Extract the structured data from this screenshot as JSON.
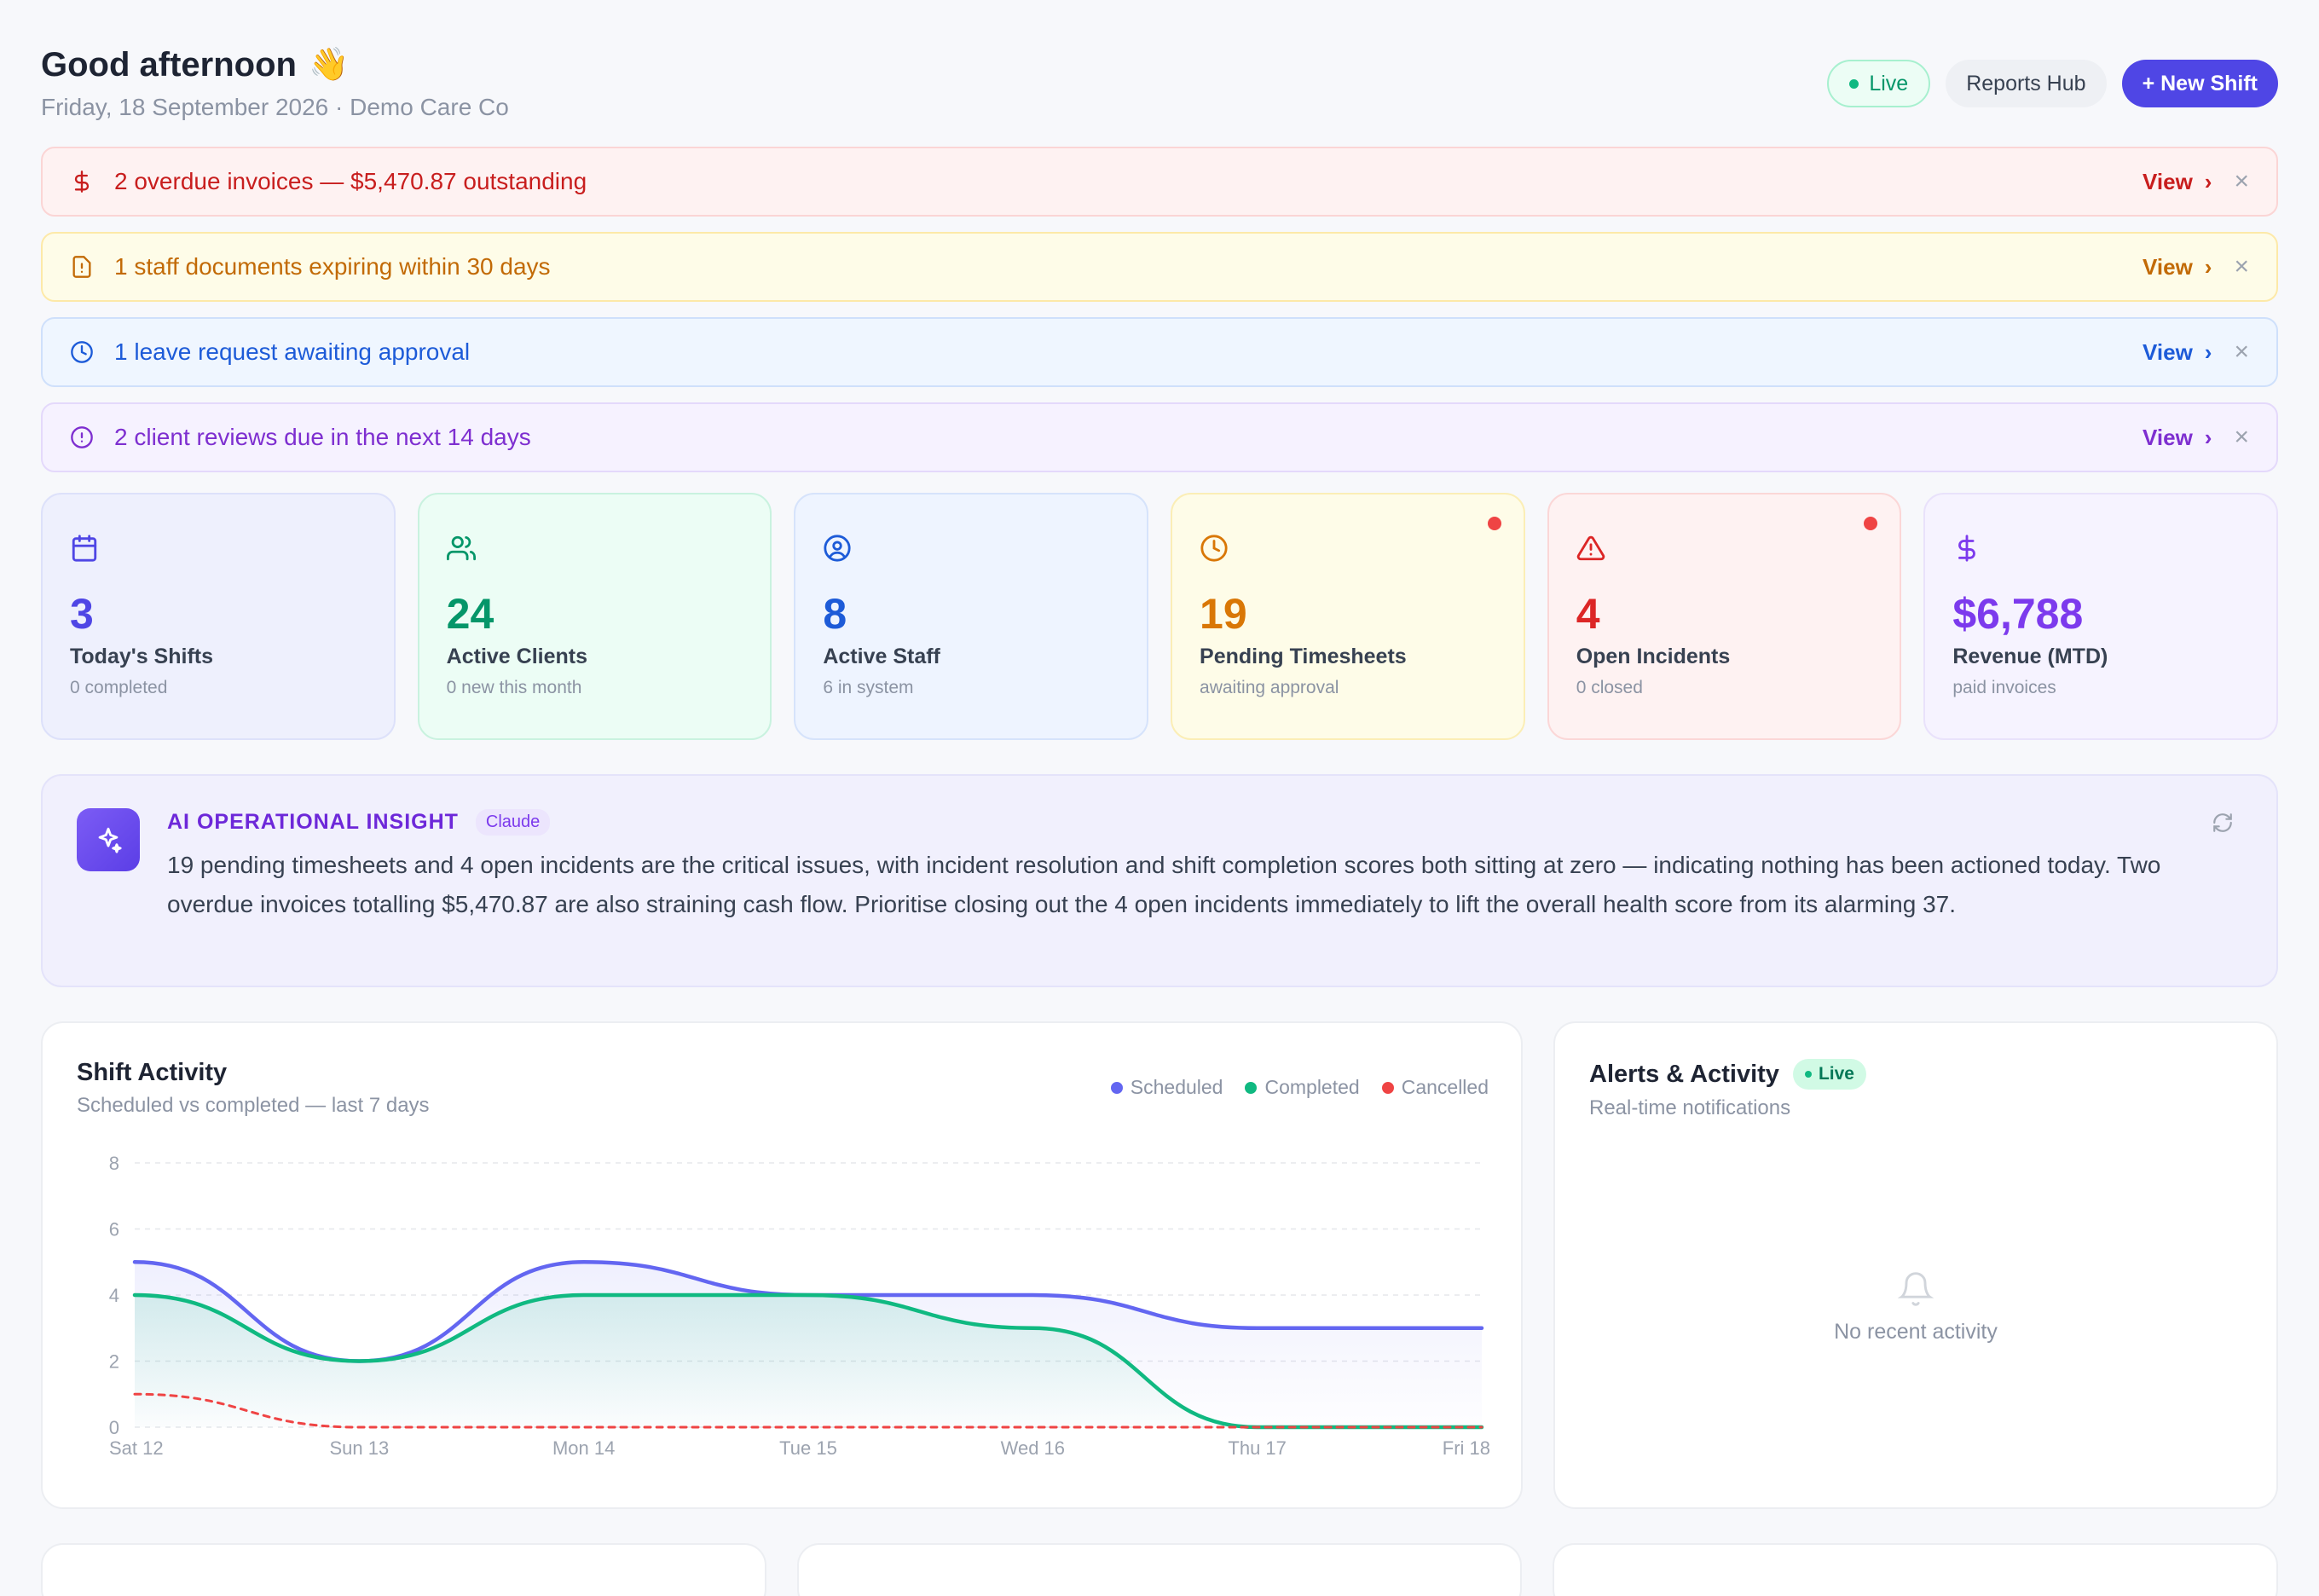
{
  "header": {
    "greeting": "Good afternoon",
    "wave_emoji": "👋",
    "subline": "Friday, 18 September 2026 · Demo Care Co",
    "live_label": "Live",
    "reports_label": "Reports Hub",
    "new_shift_label": "+ New Shift"
  },
  "alerts": [
    {
      "text": "2 overdue invoices — $5,470.87 outstanding",
      "view": "View",
      "icon": "dollar-icon",
      "tone": "red"
    },
    {
      "text": "1 staff documents expiring within 30 days",
      "view": "View",
      "icon": "document-alert-icon",
      "tone": "amber"
    },
    {
      "text": "1 leave request awaiting approval",
      "view": "View",
      "icon": "clock-icon",
      "tone": "blue"
    },
    {
      "text": "2 client reviews due in the next 14 days",
      "view": "View",
      "icon": "alert-circle-icon",
      "tone": "purple"
    }
  ],
  "stats": [
    {
      "value": "3",
      "label": "Today's Shifts",
      "sub": "0 completed",
      "icon": "calendar-icon",
      "color": "#4f46e5"
    },
    {
      "value": "24",
      "label": "Active Clients",
      "sub": "0 new this month",
      "icon": "users-icon",
      "color": "#059669"
    },
    {
      "value": "8",
      "label": "Active Staff",
      "sub": "6 in system",
      "icon": "user-circle-icon",
      "color": "#1d5bd8"
    },
    {
      "value": "19",
      "label": "Pending Timesheets",
      "sub": "awaiting approval",
      "icon": "clock-icon",
      "color": "#d97706"
    },
    {
      "value": "4",
      "label": "Open Incidents",
      "sub": "0 closed",
      "icon": "warning-triangle-icon",
      "color": "#dc2626"
    },
    {
      "value": "$6,788",
      "label": "Revenue (MTD)",
      "sub": "paid invoices",
      "icon": "dollar-icon",
      "color": "#7c3aed"
    }
  ],
  "insight": {
    "title": "AI OPERATIONAL INSIGHT",
    "tag": "Claude",
    "text": "19 pending timesheets and 4 open incidents are the critical issues, with incident resolution and shift completion scores both sitting at zero — indicating nothing has been actioned today. Two overdue invoices totalling $5,470.87 are also straining cash flow. Prioritise closing out the 4 open incidents immediately to lift the overall health score from its alarming 37."
  },
  "shift_activity": {
    "title": "Shift Activity",
    "subtitle": "Scheduled vs completed — last 7 days"
  },
  "chart_data": {
    "type": "line",
    "categories": [
      "Sat 12",
      "Sun 13",
      "Mon 14",
      "Tue 15",
      "Wed 16",
      "Thu 17",
      "Fri 18"
    ],
    "series": [
      {
        "name": "Scheduled",
        "values": [
          5,
          2,
          5,
          4,
          4,
          3,
          3
        ],
        "color": "#6366f1"
      },
      {
        "name": "Completed",
        "values": [
          4,
          2,
          4,
          4,
          3,
          0,
          0
        ],
        "color": "#10b981"
      },
      {
        "name": "Cancelled",
        "values": [
          1,
          0,
          0,
          0,
          0,
          0,
          0
        ],
        "color": "#ef4444"
      }
    ],
    "yticks": [
      0,
      2,
      4,
      6,
      8
    ],
    "ylim": [
      0,
      8
    ],
    "grid": true,
    "legend": "top-right"
  },
  "alerts_activity": {
    "title": "Alerts & Activity",
    "live_label": "Live",
    "subtitle": "Real-time notifications",
    "empty_text": "No recent activity"
  }
}
